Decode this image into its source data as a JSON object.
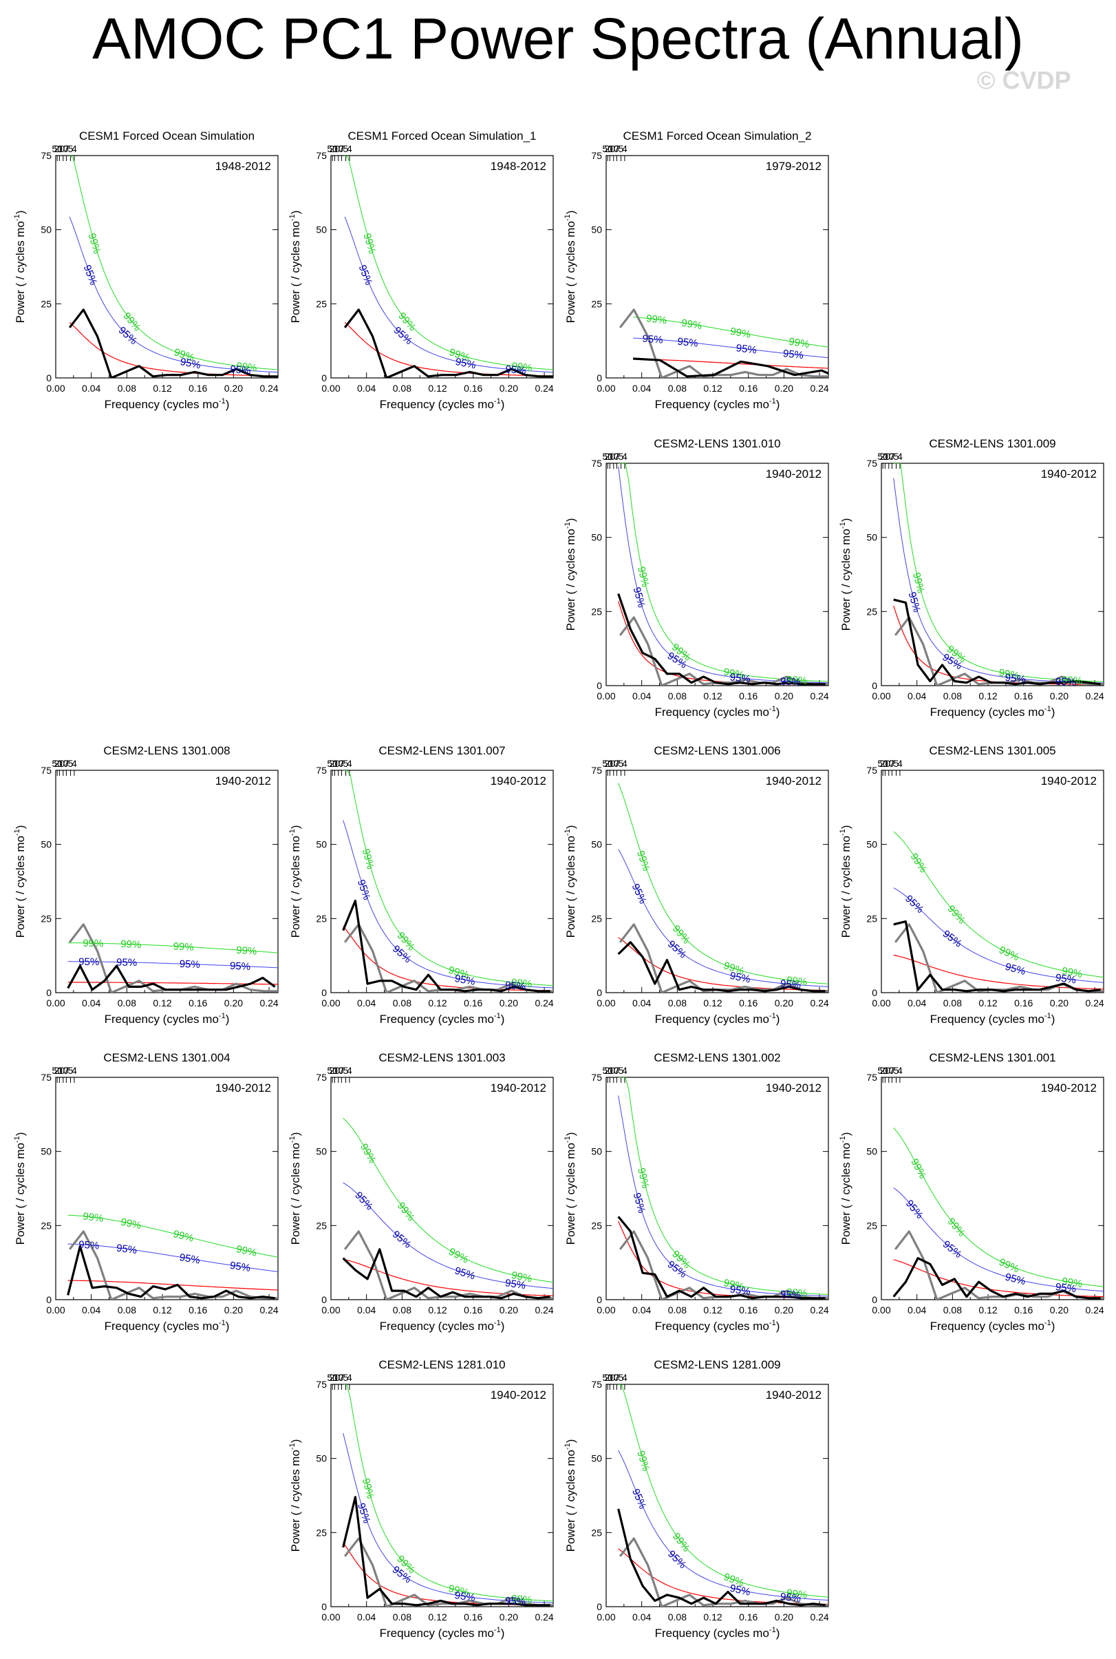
{
  "title": "AMOC PC1 Power Spectra (Annual)",
  "watermark": "© CVDP",
  "common": {
    "xlabel": "Frequency (cycles mo",
    "xlabel_sup": "-1",
    "xlabel_end": ")",
    "ylabel": "Power ( / cycles mo",
    "ylabel_sup": "-1",
    "ylabel_end": ")",
    "xlim": [
      0,
      0.25
    ],
    "ylim": [
      0,
      75
    ],
    "x_ticks": [
      "0.00",
      "0.04",
      "0.08",
      "0.12",
      "0.16",
      "0.20",
      "0.24"
    ],
    "y_ticks": [
      "0",
      "25",
      "50",
      "75"
    ],
    "period_ticks": [
      "50",
      "20",
      "10",
      "7",
      "5",
      "4"
    ],
    "label_95": "95%",
    "label_99": "99%",
    "colors": {
      "spectrum": "#000000",
      "obs": "#808080",
      "red_noise": "#ff0000",
      "sig95": "#4444ee",
      "sig99": "#22dd22",
      "label95": "#0000aa",
      "label99": "#22cc22"
    }
  },
  "chart_data": [
    {
      "type": "line",
      "title": "CESM1 Forced Ocean Simulation",
      "period": "1948-2012",
      "gray": false,
      "x": [
        0.0156,
        0.0312,
        0.0469,
        0.0625,
        0.0781,
        0.0938,
        0.1094,
        0.125,
        0.1406,
        0.1562,
        0.1719,
        0.1875,
        0.2031,
        0.2188,
        0.2344,
        0.25
      ],
      "values": [
        17,
        23,
        14,
        0,
        2,
        4,
        0.5,
        1,
        1,
        2,
        1,
        1,
        3,
        1,
        0.5,
        0.5
      ],
      "red0": 21,
      "tau": 0.045,
      "f95": 2.9,
      "f99": 4.2
    },
    {
      "type": "line",
      "title": "CESM1 Forced Ocean Simulation_1",
      "period": "1948-2012",
      "gray": false,
      "x": [
        0.0156,
        0.0312,
        0.0469,
        0.0625,
        0.0781,
        0.0938,
        0.1094,
        0.125,
        0.1406,
        0.1562,
        0.1719,
        0.1875,
        0.2031,
        0.2188,
        0.2344,
        0.25
      ],
      "values": [
        17,
        23,
        14,
        0,
        2,
        4,
        0.5,
        1,
        1,
        2,
        1,
        1,
        3,
        1,
        0.5,
        0.5
      ],
      "red0": 21,
      "tau": 0.045,
      "f95": 2.9,
      "f99": 4.2
    },
    {
      "type": "line",
      "title": "CESM1 Forced Ocean Simulation_2",
      "period": "1979-2012",
      "gray": true,
      "x": [
        0.0303,
        0.0606,
        0.0909,
        0.1212,
        0.1515,
        0.1818,
        0.2121,
        0.2424,
        0.25
      ],
      "values": [
        6.5,
        6,
        0.5,
        1,
        5.5,
        4,
        1,
        2.5,
        1.5
      ],
      "red0": 6.5,
      "tau": 0.25,
      "f95": 2.1,
      "f99": 3.2
    },
    {
      "type": "line",
      "title": "CESM2-LENS 1301.010",
      "period": "1940-2012",
      "gray": true,
      "x": [
        0.0137,
        0.0274,
        0.0411,
        0.0548,
        0.0685,
        0.0822,
        0.0959,
        0.1096,
        0.1233,
        0.137,
        0.1507,
        0.1644,
        0.1781,
        0.1918,
        0.2055,
        0.2192,
        0.2329,
        0.2466
      ],
      "values": [
        31,
        19,
        11,
        9,
        4,
        4,
        1,
        3,
        1,
        0.5,
        1,
        0.5,
        1,
        0.5,
        1,
        0.5,
        0.5,
        0.5
      ],
      "red0": 37,
      "tau": 0.025,
      "f95": 2.6,
      "f99": 3.8
    },
    {
      "type": "line",
      "title": "CESM2-LENS 1301.009",
      "period": "1940-2012",
      "gray": true,
      "x": [
        0.0137,
        0.0274,
        0.0411,
        0.0548,
        0.0685,
        0.0822,
        0.0959,
        0.1096,
        0.1233,
        0.137,
        0.1507,
        0.1644,
        0.1781,
        0.1918,
        0.2055,
        0.2192,
        0.2329,
        0.2466
      ],
      "values": [
        29,
        28,
        7,
        1.5,
        7,
        1.5,
        1,
        3,
        1,
        1,
        0.5,
        1,
        0.5,
        1,
        1,
        1.5,
        1,
        0.5
      ],
      "red0": 35,
      "tau": 0.025,
      "f95": 2.6,
      "f99": 3.8
    },
    {
      "type": "line",
      "title": "CESM2-LENS 1301.008",
      "period": "1940-2012",
      "gray": true,
      "x": [
        0.0137,
        0.0274,
        0.0411,
        0.0548,
        0.0685,
        0.0822,
        0.0959,
        0.1096,
        0.1233,
        0.137,
        0.1507,
        0.1644,
        0.1781,
        0.1918,
        0.2055,
        0.2192,
        0.2329,
        0.2466
      ],
      "values": [
        1.5,
        9,
        1,
        4,
        9,
        2,
        2,
        3,
        1,
        1,
        1,
        1,
        1,
        1,
        2,
        3,
        5,
        2
      ],
      "red0": 3.5,
      "tau": 0.5,
      "f95": 3.0,
      "f99": 4.8
    },
    {
      "type": "line",
      "title": "CESM2-LENS 1301.007",
      "period": "1940-2012",
      "gray": true,
      "x": [
        0.0137,
        0.0274,
        0.0411,
        0.0548,
        0.0685,
        0.0822,
        0.0959,
        0.1096,
        0.1233,
        0.137,
        0.1507,
        0.1644,
        0.1781,
        0.1918,
        0.2055,
        0.2192,
        0.2329,
        0.2466
      ],
      "values": [
        21,
        31,
        3,
        4,
        4,
        2,
        1,
        6,
        1,
        1,
        0.5,
        1,
        1,
        0.5,
        2,
        1,
        0.5,
        0.5
      ],
      "red0": 25,
      "tau": 0.04,
      "f95": 2.6,
      "f99": 3.8
    },
    {
      "type": "line",
      "title": "CESM2-LENS 1301.006",
      "period": "1940-2012",
      "gray": true,
      "x": [
        0.0137,
        0.0274,
        0.0411,
        0.0548,
        0.0685,
        0.0822,
        0.0959,
        0.1096,
        0.1233,
        0.137,
        0.1507,
        0.1644,
        0.1781,
        0.1918,
        0.2055,
        0.2192,
        0.2329,
        0.2466
      ],
      "values": [
        13,
        17,
        12,
        3,
        11,
        1,
        2,
        1,
        1,
        0.5,
        1,
        1,
        0.5,
        1,
        2,
        1,
        0.5,
        0.5
      ],
      "red0": 20,
      "tau": 0.05,
      "f95": 2.6,
      "f99": 3.8
    },
    {
      "type": "line",
      "title": "CESM2-LENS 1301.005",
      "period": "1940-2012",
      "gray": true,
      "x": [
        0.0137,
        0.0274,
        0.0411,
        0.0548,
        0.0685,
        0.0822,
        0.0959,
        0.1096,
        0.1233,
        0.137,
        0.1507,
        0.1644,
        0.1781,
        0.1918,
        0.2055,
        0.2192,
        0.2329,
        0.2466
      ],
      "values": [
        23,
        24,
        1,
        6,
        1,
        1,
        0.5,
        1,
        1,
        0.5,
        1,
        1,
        1,
        2,
        3,
        1,
        0.5,
        1
      ],
      "red0": 13,
      "tau": 0.08,
      "f95": 2.8,
      "f99": 4.3
    },
    {
      "type": "line",
      "title": "CESM2-LENS 1301.004",
      "period": "1940-2012",
      "gray": true,
      "x": [
        0.0137,
        0.0274,
        0.0411,
        0.0548,
        0.0685,
        0.0822,
        0.0959,
        0.1096,
        0.1233,
        0.137,
        0.1507,
        0.1644,
        0.1781,
        0.1918,
        0.2055,
        0.2192,
        0.2329,
        0.2466
      ],
      "values": [
        1.5,
        18,
        4,
        4.5,
        4,
        2,
        1,
        4.5,
        3.5,
        5,
        1,
        0.5,
        1,
        3,
        1,
        0.5,
        1,
        0.5
      ],
      "red0": 6.5,
      "tau": 0.25,
      "f95": 2.9,
      "f99": 4.4
    },
    {
      "type": "line",
      "title": "CESM2-LENS 1301.003",
      "period": "1940-2012",
      "gray": true,
      "x": [
        0.0137,
        0.0274,
        0.0411,
        0.0548,
        0.0685,
        0.0822,
        0.0959,
        0.1096,
        0.1233,
        0.137,
        0.1507,
        0.1644,
        0.1781,
        0.1918,
        0.2055,
        0.2192,
        0.2329,
        0.2466
      ],
      "values": [
        14,
        10,
        7,
        17,
        3,
        3,
        1,
        4,
        1,
        2.5,
        1,
        1,
        1,
        0.5,
        2,
        1,
        0.5,
        1
      ],
      "red0": 14,
      "tau": 0.08,
      "f95": 2.9,
      "f99": 4.5
    },
    {
      "type": "line",
      "title": "CESM2-LENS 1301.002",
      "period": "1940-2012",
      "gray": true,
      "x": [
        0.0137,
        0.0274,
        0.0411,
        0.0548,
        0.0685,
        0.0822,
        0.0959,
        0.1096,
        0.1233,
        0.137,
        0.1507,
        0.1644,
        0.1781,
        0.1918,
        0.2055,
        0.2192,
        0.2329,
        0.2466
      ],
      "values": [
        28,
        23,
        9,
        8.5,
        1,
        3,
        1,
        4,
        1,
        1,
        1.5,
        0.5,
        1,
        1,
        1,
        0.5,
        0.5,
        0.5
      ],
      "red0": 32,
      "tau": 0.03,
      "f95": 2.6,
      "f99": 3.8
    },
    {
      "type": "line",
      "title": "CESM2-LENS 1301.001",
      "period": "1940-2012",
      "gray": true,
      "x": [
        0.0137,
        0.0274,
        0.0411,
        0.0548,
        0.0685,
        0.0822,
        0.0959,
        0.1096,
        0.1233,
        0.137,
        0.1507,
        0.1644,
        0.1781,
        0.1918,
        0.2055,
        0.2192,
        0.2329,
        0.2466
      ],
      "values": [
        1,
        6,
        14,
        12,
        5,
        7,
        1,
        6,
        3,
        1,
        2,
        1,
        2,
        2,
        3,
        1,
        0.5,
        0.5
      ],
      "red0": 14,
      "tau": 0.07,
      "f95": 2.8,
      "f99": 4.3
    },
    {
      "type": "line",
      "title": "CESM2-LENS 1281.010",
      "period": "1940-2012",
      "gray": true,
      "x": [
        0.0137,
        0.0274,
        0.0411,
        0.0548,
        0.0685,
        0.0822,
        0.0959,
        0.1096,
        0.1233,
        0.137,
        0.1507,
        0.1644,
        0.1781,
        0.1918,
        0.2055,
        0.2192,
        0.2329,
        0.2466
      ],
      "values": [
        20,
        37,
        3,
        6,
        1,
        1,
        0.5,
        1,
        2,
        1,
        1,
        0.5,
        1,
        1,
        1,
        0.5,
        0.5,
        0.5
      ],
      "red0": 25,
      "tau": 0.035,
      "f95": 2.7,
      "f99": 3.9
    },
    {
      "type": "line",
      "title": "CESM2-LENS 1281.009",
      "period": "1940-2012",
      "gray": true,
      "x": [
        0.0137,
        0.0274,
        0.0411,
        0.0548,
        0.0685,
        0.0822,
        0.0959,
        0.1096,
        0.1233,
        0.137,
        0.1507,
        0.1644,
        0.1781,
        0.1918,
        0.2055,
        0.2192,
        0.2329,
        0.2466
      ],
      "values": [
        33,
        16,
        7,
        2,
        4,
        3,
        1,
        3,
        1,
        5,
        1,
        1,
        1,
        2,
        1,
        0.5,
        1,
        0.5
      ],
      "red0": 21,
      "tau": 0.05,
      "f95": 2.7,
      "f99": 4.0
    }
  ],
  "obs_reference": {
    "name": "gray reference spectrum",
    "x": [
      0.0156,
      0.0312,
      0.0469,
      0.0625,
      0.0781,
      0.0938,
      0.1094,
      0.125,
      0.1406,
      0.1562,
      0.1719,
      0.1875,
      0.2031,
      0.2188,
      0.2344,
      0.25
    ],
    "values": [
      17,
      23,
      14,
      0,
      2,
      4,
      0.5,
      1,
      1,
      2,
      1,
      1,
      3,
      1,
      0.5,
      0.5
    ]
  }
}
